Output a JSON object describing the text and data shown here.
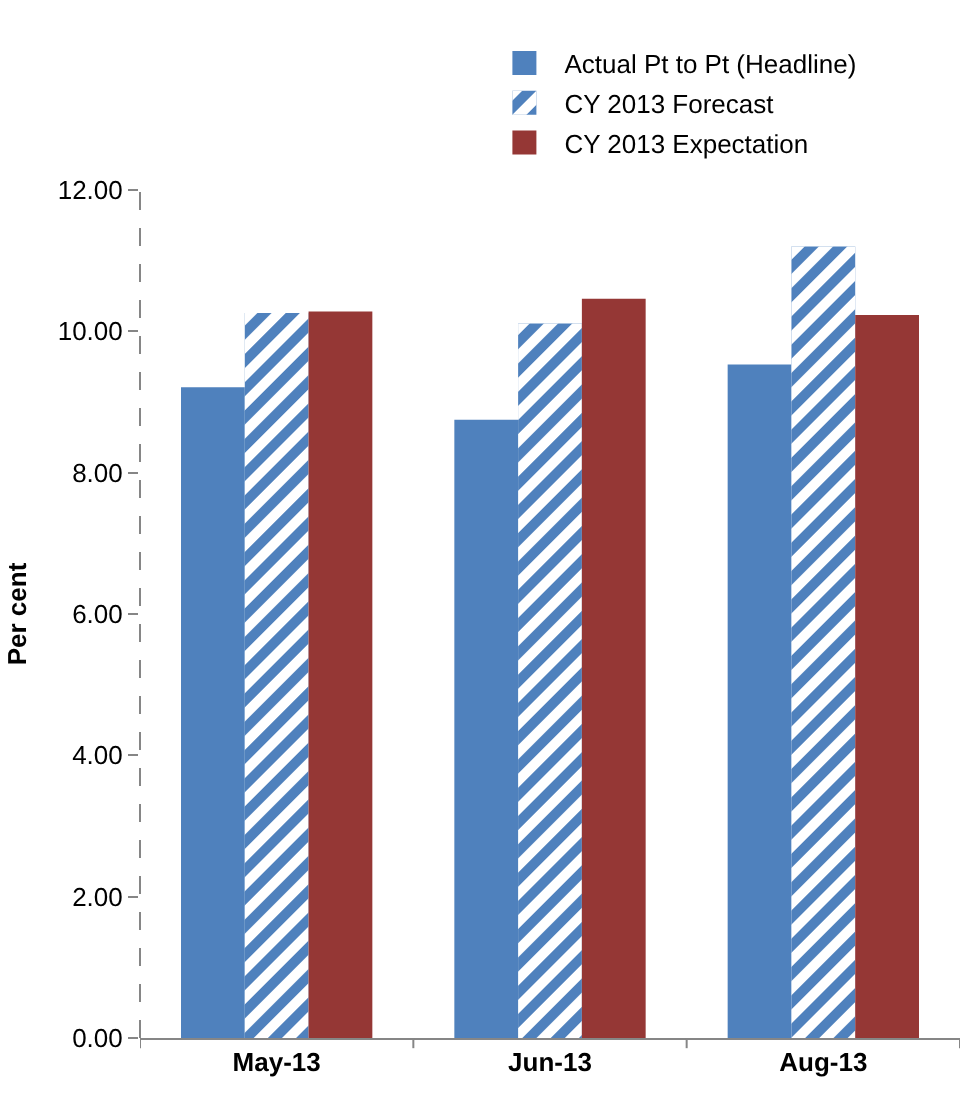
{
  "chart_data": {
    "type": "bar",
    "ylabel": "Per cent",
    "categories": [
      "May-13",
      "Jun-13",
      "Aug-13"
    ],
    "series": [
      {
        "name": "Actual Pt to Pt (Headline)",
        "color": "#4f81bd",
        "values": [
          9.21,
          8.75,
          9.53
        ]
      },
      {
        "name": "CY 2013 Forecast",
        "color": "#4f81bd",
        "values": [
          10.26,
          10.11,
          11.2
        ]
      },
      {
        "name": "CY 2013 Expectation",
        "color": "#953735",
        "values": [
          10.28,
          10.46,
          10.23
        ]
      }
    ],
    "ylim": [
      0,
      12
    ],
    "yticks": [
      {
        "value": 0,
        "label": "0.00"
      },
      {
        "value": 2,
        "label": "2.00"
      },
      {
        "value": 4,
        "label": "4.00"
      },
      {
        "value": 6,
        "label": "6.00"
      },
      {
        "value": 8,
        "label": "8.00"
      },
      {
        "value": 10,
        "label": "10.00"
      },
      {
        "value": 12,
        "label": "12.00"
      }
    ],
    "grid": false,
    "legend": "top"
  }
}
